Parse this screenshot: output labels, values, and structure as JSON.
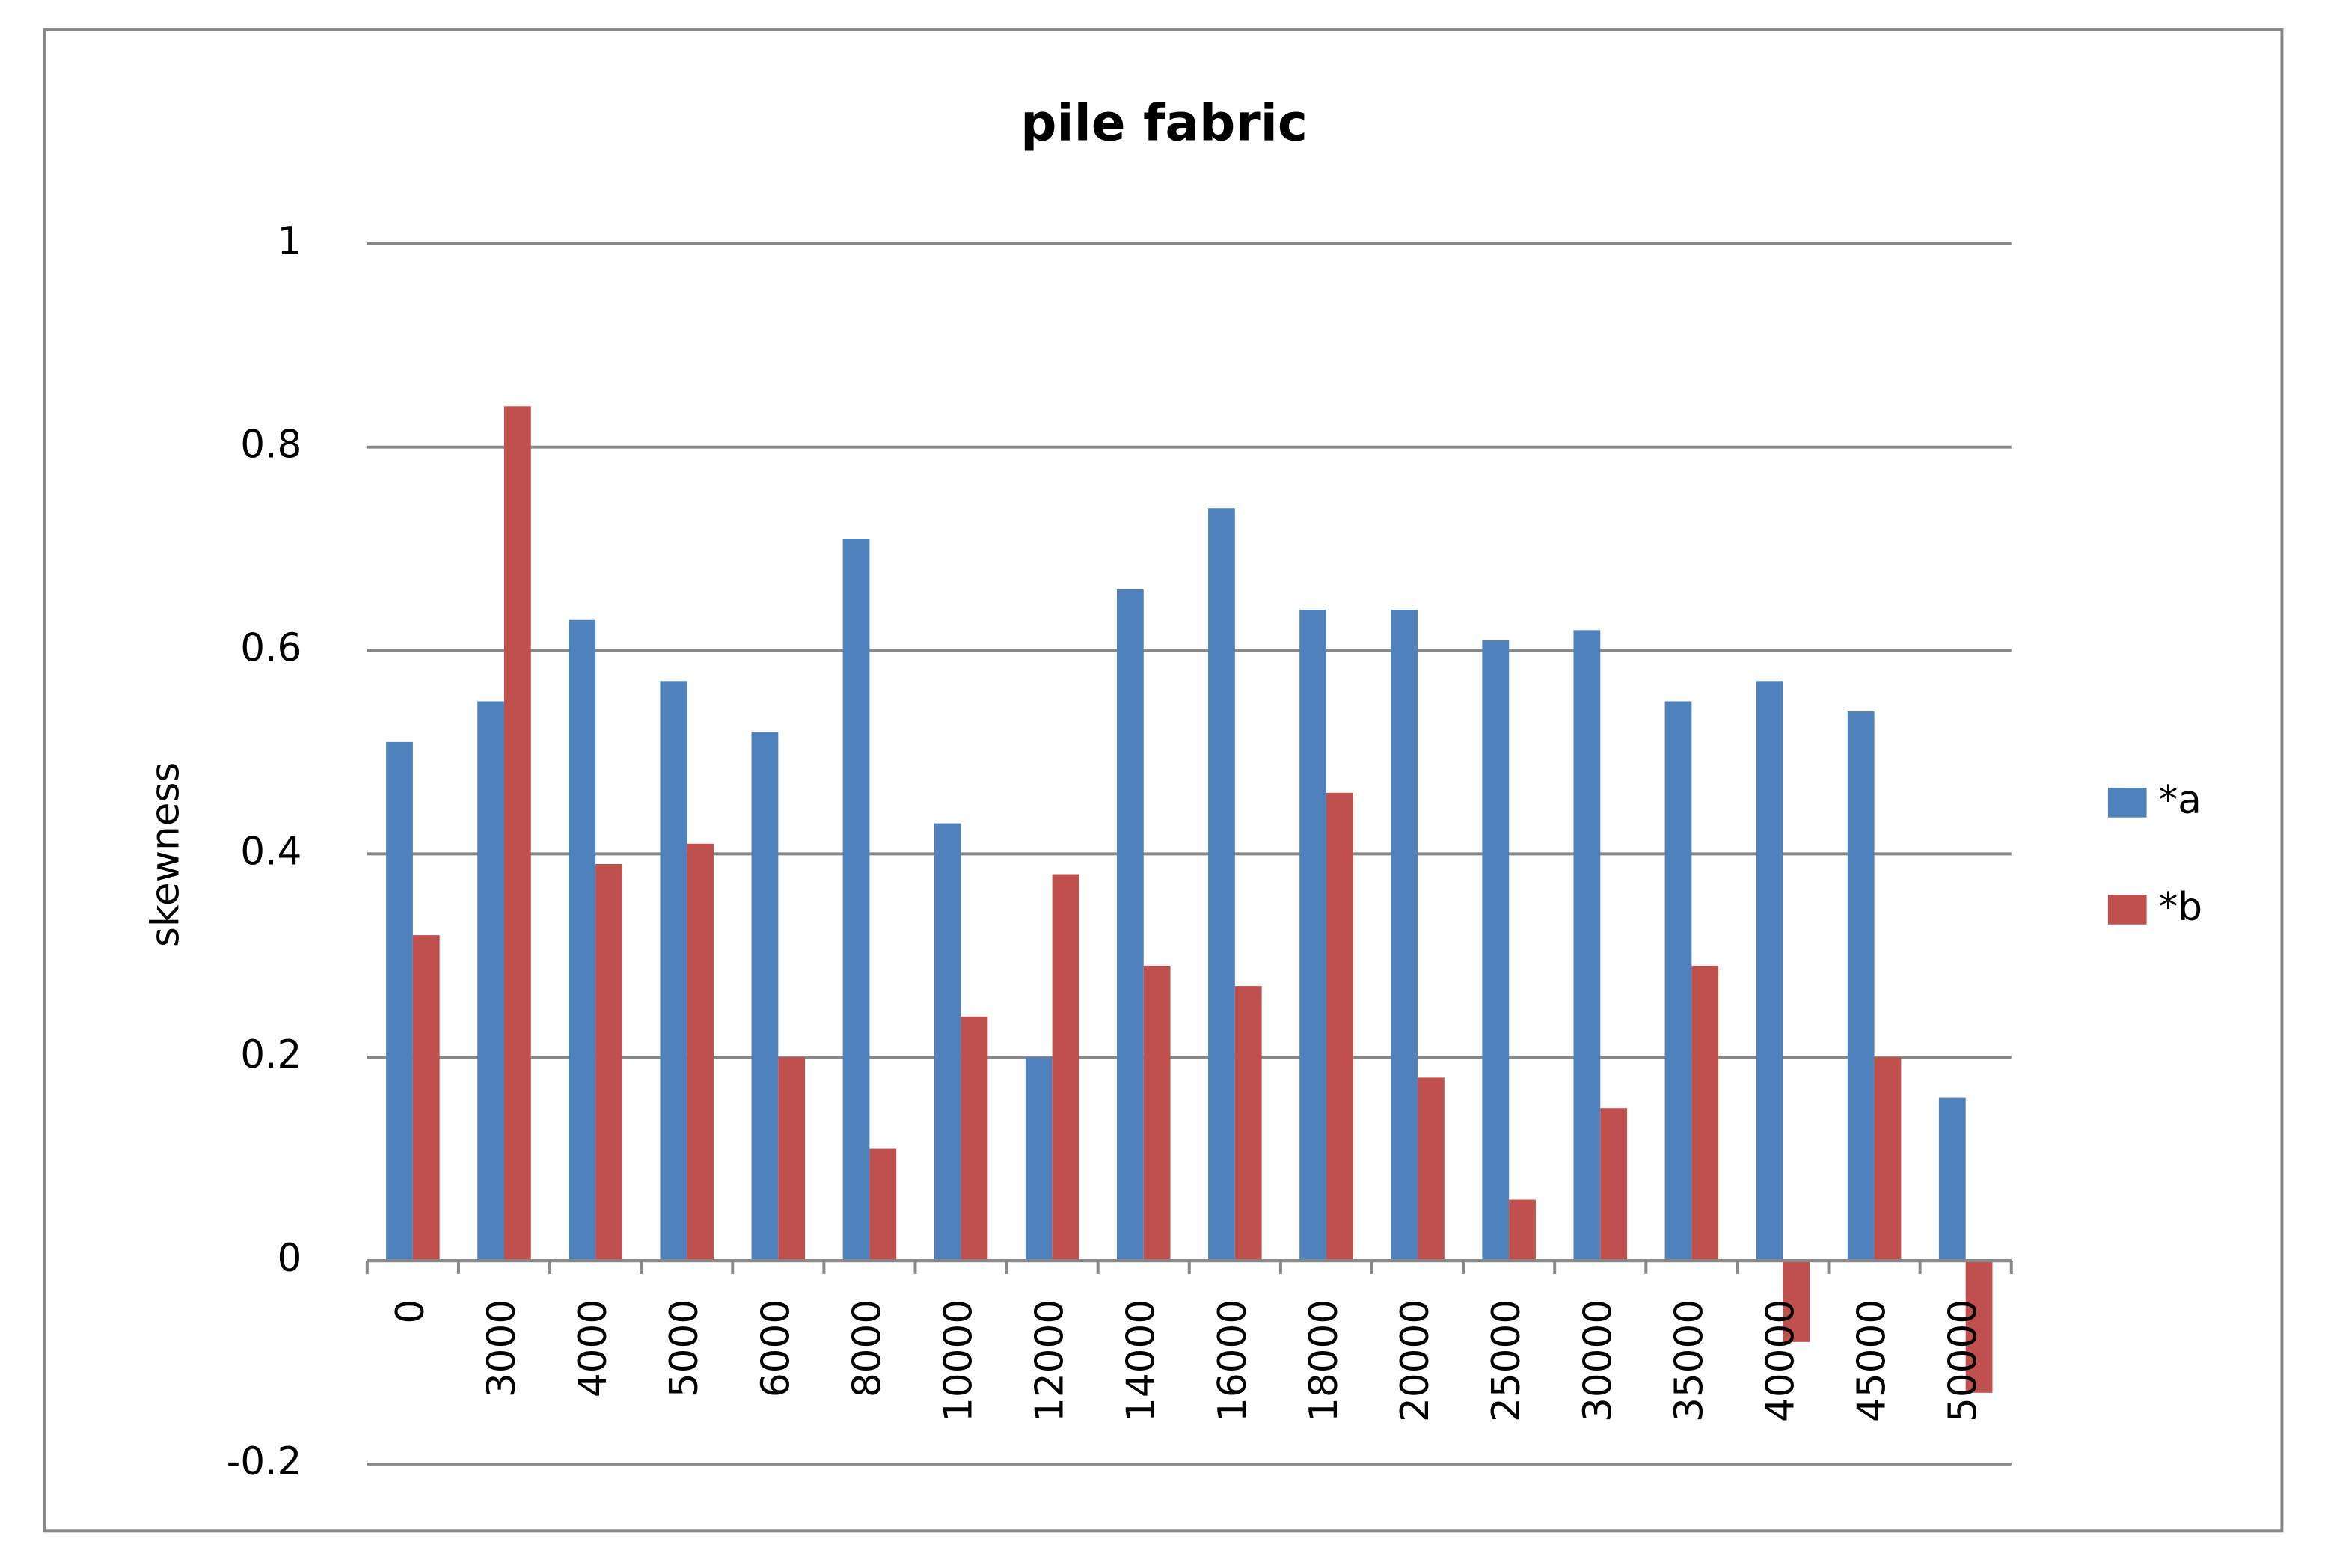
{
  "chart_data": {
    "type": "bar",
    "title": "pile fabric",
    "y_label": "skewness",
    "categories": [
      "0",
      "3000",
      "4000",
      "5000",
      "6000",
      "8000",
      "10000",
      "12000",
      "14000",
      "16000",
      "18000",
      "20000",
      "25000",
      "30000",
      "35000",
      "40000",
      "45000",
      "50000"
    ],
    "series": [
      {
        "name": "*a",
        "color": "#4f81bd",
        "values": [
          0.51,
          0.55,
          0.63,
          0.57,
          0.52,
          0.71,
          0.43,
          0.2,
          0.66,
          0.74,
          0.64,
          0.64,
          0.61,
          0.62,
          0.55,
          0.57,
          0.54,
          0.16
        ]
      },
      {
        "name": "*b",
        "color": "#c0504d",
        "values": [
          0.32,
          0.84,
          0.39,
          0.41,
          0.2,
          0.11,
          0.24,
          0.38,
          0.29,
          0.27,
          0.46,
          0.18,
          0.06,
          0.15,
          0.29,
          -0.08,
          0.2,
          -0.13
        ]
      }
    ],
    "ylim": [
      -0.2,
      1
    ],
    "yticks": [
      -0.2,
      0,
      0.2,
      0.4,
      0.6,
      0.8,
      1
    ],
    "grid": true,
    "legend": "right"
  }
}
